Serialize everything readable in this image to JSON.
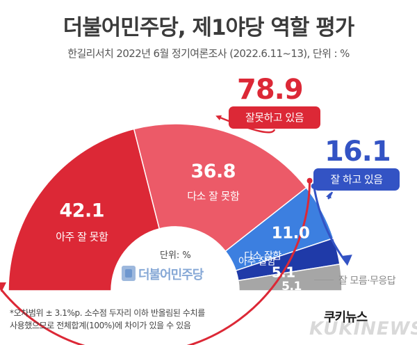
{
  "title": "더불어민주당, 제1야당 역할 평가",
  "subtitle": "한길리서치 2022년 6월 정기여론조사 (2022.6.11~13), 단위 : %",
  "unit_label": "단위: %",
  "logo_text": "더불어민주당",
  "footnote_line1": "*오차범위 ± 3.1%p. 소수점 두자리 이하 반올림된 수치를",
  "footnote_line2": "사용했으므로 전체합계(100%)에 차이가 있을 수 있음",
  "credit": "쿠키뉴스",
  "watermark": "KUKINEWS",
  "summary": {
    "negative": {
      "value": "78.9",
      "label": "잘못하고 있음",
      "color": "#dc2836"
    },
    "positive": {
      "value": "16.1",
      "label": "잘 하고 있음",
      "color": "#3353c4"
    }
  },
  "chart_data": {
    "type": "pie",
    "shape": "semicircle-donut",
    "unit": "%",
    "segments": [
      {
        "label": "아주 잘 못함",
        "value": 42.1,
        "color": "#dc2836"
      },
      {
        "label": "다소 잘 못함",
        "value": 36.8,
        "color": "#ec5a68"
      },
      {
        "label": "다소 잘함",
        "value": 11.0,
        "color": "#3c7fe0"
      },
      {
        "label": "아주 잘함",
        "value": 5.1,
        "color": "#1f3aa8"
      },
      {
        "label": "잘 모름·무응답",
        "value": 5.1,
        "color": "#a6a6a6"
      }
    ]
  }
}
